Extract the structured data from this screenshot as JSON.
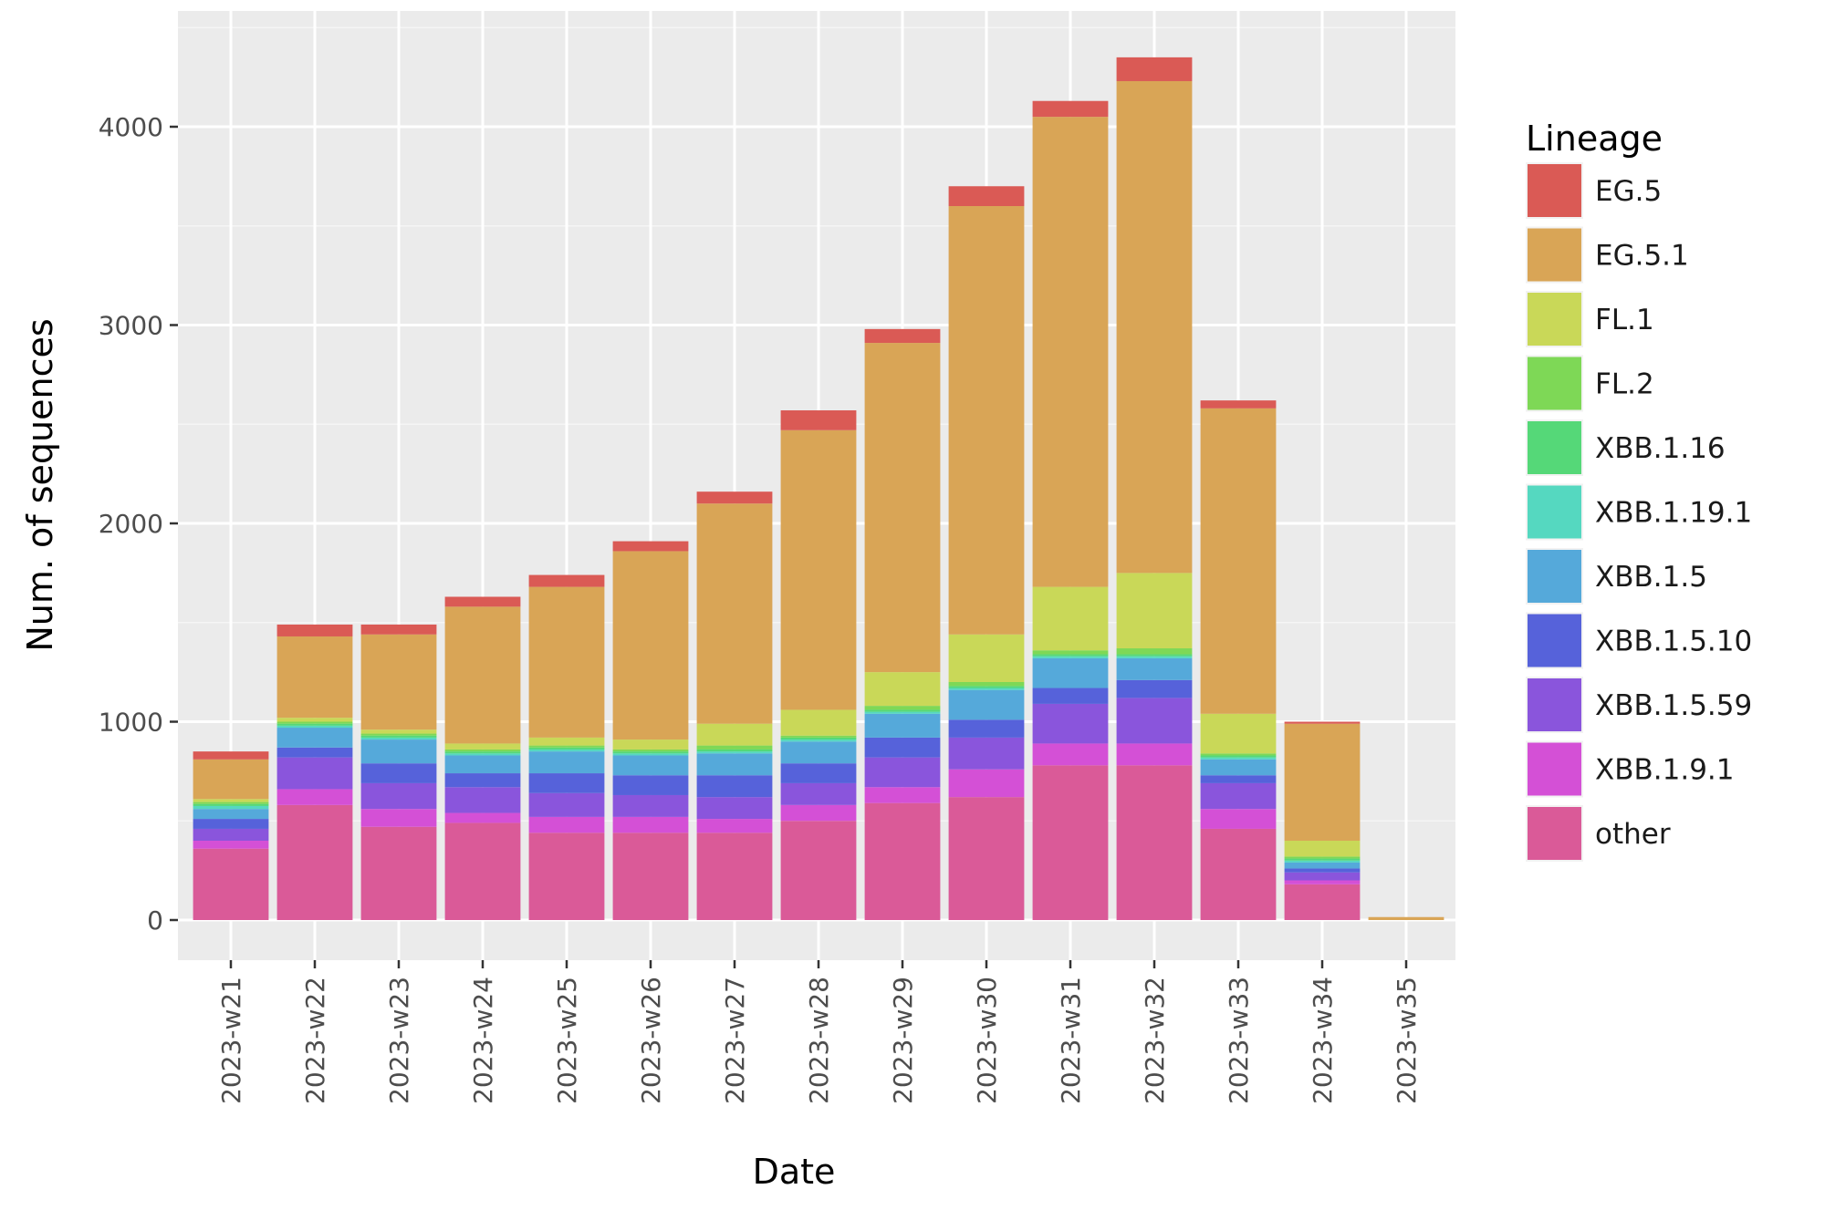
{
  "chart_data": {
    "type": "bar",
    "stacked": true,
    "xlabel": "Date",
    "ylabel": "Num. of sequences",
    "ylim": [
      0,
      4500
    ],
    "yticks": [
      0,
      1000,
      2000,
      3000,
      4000
    ],
    "grid": true,
    "legend": {
      "title": "Lineage",
      "position": "right"
    },
    "categories": [
      "2023-w21",
      "2023-w22",
      "2023-w23",
      "2023-w24",
      "2023-w25",
      "2023-w26",
      "2023-w27",
      "2023-w28",
      "2023-w29",
      "2023-w30",
      "2023-w31",
      "2023-w32",
      "2023-w33",
      "2023-w34",
      "2023-w35"
    ],
    "series": [
      {
        "name": "other",
        "color": "#DA5A98",
        "values": [
          360,
          580,
          470,
          490,
          440,
          440,
          440,
          500,
          590,
          620,
          780,
          780,
          460,
          180,
          0
        ]
      },
      {
        "name": "XBB.1.9.1",
        "color": "#D450D6",
        "values": [
          40,
          80,
          90,
          50,
          80,
          80,
          70,
          80,
          80,
          140,
          110,
          110,
          100,
          20,
          0
        ]
      },
      {
        "name": "XBB.1.5.59",
        "color": "#8A55DC",
        "values": [
          60,
          160,
          130,
          130,
          120,
          110,
          110,
          110,
          150,
          160,
          200,
          230,
          130,
          40,
          0
        ]
      },
      {
        "name": "XBB.1.5.10",
        "color": "#5662DA",
        "values": [
          50,
          50,
          100,
          70,
          100,
          100,
          110,
          100,
          100,
          90,
          80,
          90,
          40,
          20,
          0
        ]
      },
      {
        "name": "XBB.1.5",
        "color": "#55A9DA",
        "values": [
          50,
          100,
          120,
          90,
          110,
          100,
          110,
          110,
          120,
          150,
          150,
          110,
          80,
          30,
          0
        ]
      },
      {
        "name": "XBB.1.19.1",
        "color": "#55D8C0",
        "values": [
          15,
          10,
          10,
          10,
          10,
          10,
          10,
          10,
          10,
          10,
          10,
          10,
          10,
          10,
          0
        ]
      },
      {
        "name": "XBB.1.16",
        "color": "#55D878",
        "values": [
          10,
          10,
          10,
          10,
          10,
          10,
          10,
          10,
          10,
          10,
          10,
          10,
          10,
          10,
          0
        ]
      },
      {
        "name": "FL.2",
        "color": "#7ED856",
        "values": [
          10,
          10,
          10,
          10,
          10,
          10,
          20,
          10,
          20,
          20,
          20,
          30,
          10,
          10,
          0
        ]
      },
      {
        "name": "FL.1",
        "color": "#C9D858",
        "values": [
          15,
          20,
          20,
          30,
          40,
          50,
          110,
          130,
          170,
          240,
          320,
          380,
          200,
          80,
          0
        ]
      },
      {
        "name": "EG.5.1",
        "color": "#D9A556",
        "values": [
          200,
          410,
          480,
          690,
          760,
          950,
          1110,
          1410,
          1660,
          2160,
          2370,
          2480,
          1540,
          590,
          15
        ]
      },
      {
        "name": "EG.5",
        "color": "#DA5A55",
        "values": [
          40,
          60,
          50,
          50,
          60,
          50,
          60,
          100,
          70,
          100,
          80,
          120,
          40,
          10,
          0
        ]
      }
    ],
    "legend_order": [
      "EG.5",
      "EG.5.1",
      "FL.1",
      "FL.2",
      "XBB.1.16",
      "XBB.1.19.1",
      "XBB.1.5",
      "XBB.1.5.10",
      "XBB.1.5.59",
      "XBB.1.9.1",
      "other"
    ]
  }
}
